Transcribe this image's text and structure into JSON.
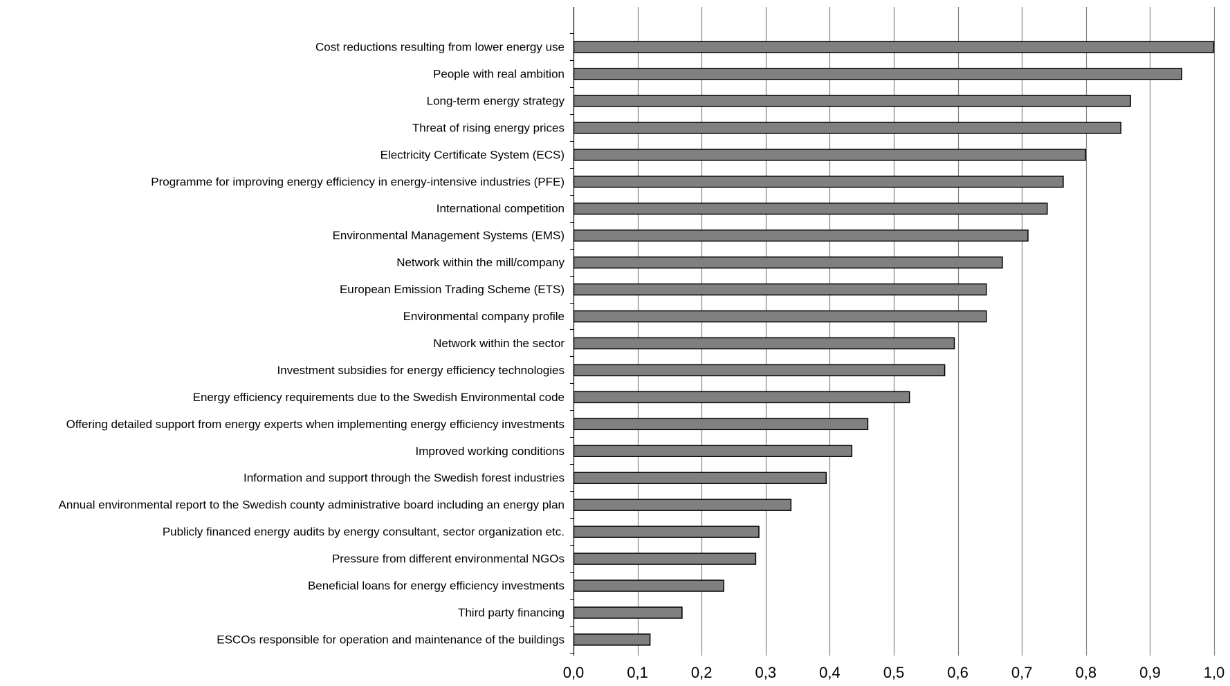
{
  "chart_data": {
    "type": "bar",
    "orientation": "horizontal",
    "title": "",
    "xlabel": "",
    "ylabel": "",
    "xlim": [
      0,
      1.0
    ],
    "xticks": [
      0,
      0.1,
      0.2,
      0.3,
      0.4,
      0.5,
      0.6,
      0.7,
      0.8,
      0.9,
      1.0
    ],
    "xtick_labels": [
      "0,0",
      "0,1",
      "0,2",
      "0,3",
      "0,4",
      "0,5",
      "0,6",
      "0,7",
      "0,8",
      "0,9",
      "1,0"
    ],
    "grid": "vertical",
    "legend": "none",
    "bar_color": "#808080",
    "bar_edge_color": "#000000",
    "categories": [
      "Cost reductions resulting from lower energy use",
      "People with real ambition",
      "Long-term energy strategy",
      "Threat of rising energy prices",
      "Electricity Certificate System (ECS)",
      "Programme for improving energy efficiency in energy-intensive industries (PFE)",
      "International competition",
      "Environmental Management Systems (EMS)",
      "Network within the mill/company",
      "European Emission Trading Scheme (ETS)",
      "Environmental company profile",
      "Network within the sector",
      "Investment subsidies for energy efficiency technologies",
      "Energy efficiency requirements due to the Swedish Environmental code",
      "Offering detailed support from energy experts when implementing energy efficiency investments",
      "Improved working conditions",
      "Information and support through the Swedish forest industries",
      "Annual environmental report to the Swedish county administrative board including an energy plan",
      "Publicly financed energy audits by energy consultant, sector organization etc.",
      "Pressure from different environmental NGOs",
      "Beneficial loans for energy efficiency investments",
      "Third party financing",
      "ESCOs responsible for operation and maintenance of the buildings"
    ],
    "values": [
      1.0,
      0.95,
      0.87,
      0.855,
      0.8,
      0.765,
      0.74,
      0.71,
      0.67,
      0.645,
      0.645,
      0.595,
      0.58,
      0.525,
      0.46,
      0.435,
      0.395,
      0.34,
      0.29,
      0.285,
      0.235,
      0.17,
      0.12
    ]
  }
}
